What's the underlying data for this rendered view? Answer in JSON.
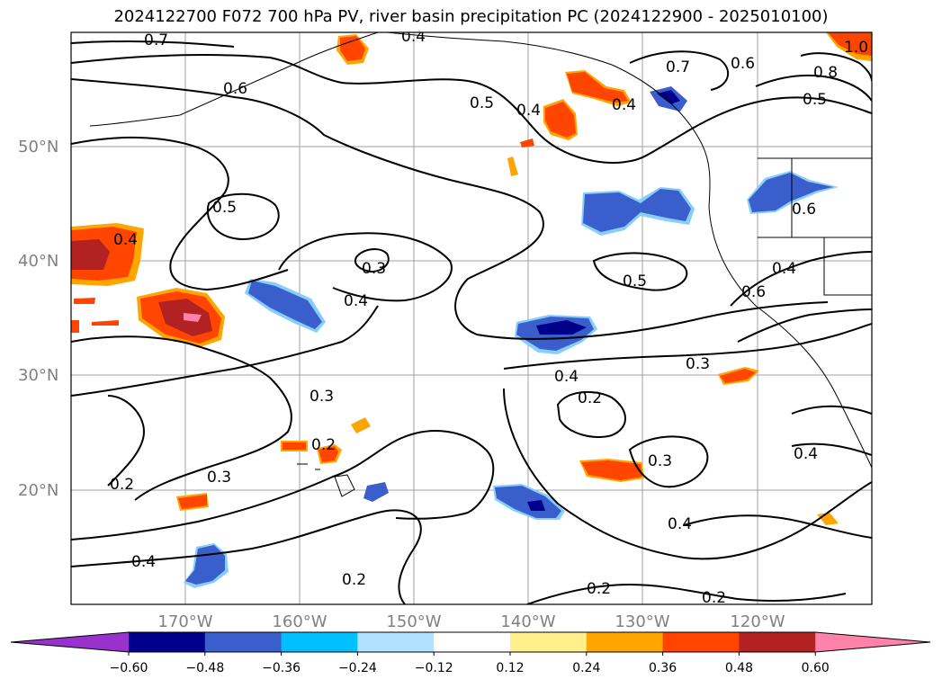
{
  "title": "2024122700 F072 700 hPa PV, river basin precipitation PC (2024122900 - 2025010100)",
  "axes": {
    "lat_labels": [
      "50°N",
      "40°N",
      "30°N",
      "20°N"
    ],
    "lon_labels": [
      "170°W",
      "160°W",
      "150°W",
      "140°W",
      "130°W",
      "120°W"
    ]
  },
  "contour_labels": [
    "0.7",
    "0.4",
    "0.4",
    "0.6",
    "0.5",
    "0.4",
    "0.7",
    "0.6",
    "0.8",
    "0.5",
    "1.0",
    "0.4",
    "0.5",
    "0.3",
    "0.4",
    "0.5",
    "0.6",
    "0.6",
    "0.4",
    "0.3",
    "0.3",
    "0.4",
    "0.2",
    "0.2",
    "0.3",
    "0.2",
    "0.3",
    "0.4",
    "0.4",
    "0.4",
    "0.2",
    "0.2",
    "0.2"
  ],
  "colorbar": {
    "ticks": [
      "−0.60",
      "−0.48",
      "−0.36",
      "−0.24",
      "−0.12",
      "0.12",
      "0.24",
      "0.36",
      "0.48",
      "0.60"
    ],
    "colors": [
      "#9932cc",
      "#00008b",
      "#3a5fcd",
      "#00bfff",
      "#b0e2ff",
      "#ffffff",
      "#fff08c",
      "#ffa500",
      "#ff4500",
      "#b22222",
      "#ff82ab"
    ]
  }
}
